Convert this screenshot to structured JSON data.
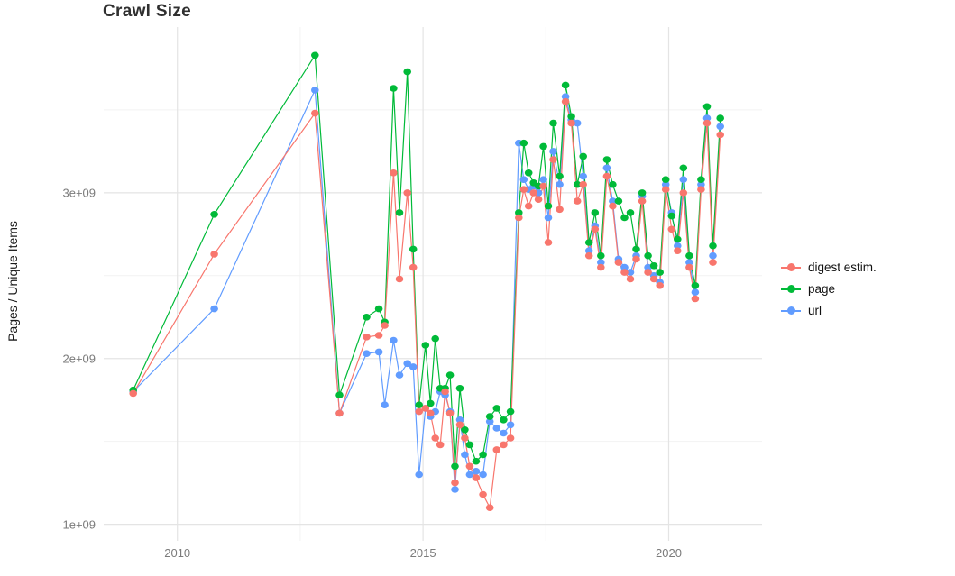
{
  "chart_data": {
    "type": "line",
    "title": "Crawl Size",
    "xlabel": "",
    "ylabel": "Pages / Unique Items",
    "y_unit": "pages (value x 1e9)",
    "x_domain": [
      2008.5,
      2021.9
    ],
    "y_domain": [
      0.9,
      4.0
    ],
    "x_ticks": [
      {
        "v": 2010,
        "label": "2010"
      },
      {
        "v": 2015,
        "label": "2015"
      },
      {
        "v": 2020,
        "label": "2020"
      }
    ],
    "y_ticks": [
      {
        "v": 1,
        "label": "1e+09"
      },
      {
        "v": 2,
        "label": "2e+09"
      },
      {
        "v": 3,
        "label": "3e+09"
      }
    ],
    "minor_x": [
      2012.5,
      2017.5
    ],
    "minor_y": [
      1.5,
      2.5,
      3.5
    ],
    "grid": {
      "major_color": "#e4e4e4",
      "minor_color": "#f2f2f2",
      "background": "#ffffff"
    },
    "legend_position": "right",
    "x": [
      2009.1,
      2010.75,
      2012.8,
      2013.3,
      2013.85,
      2014.1,
      2014.22,
      2014.4,
      2014.52,
      2014.68,
      2014.8,
      2014.92,
      2015.05,
      2015.15,
      2015.25,
      2015.35,
      2015.45,
      2015.55,
      2015.65,
      2015.75,
      2015.85,
      2015.95,
      2016.08,
      2016.22,
      2016.36,
      2016.5,
      2016.64,
      2016.78,
      2016.95,
      2017.05,
      2017.15,
      2017.25,
      2017.35,
      2017.45,
      2017.55,
      2017.65,
      2017.78,
      2017.9,
      2018.02,
      2018.14,
      2018.26,
      2018.38,
      2018.5,
      2018.62,
      2018.74,
      2018.86,
      2018.98,
      2019.1,
      2019.22,
      2019.34,
      2019.46,
      2019.58,
      2019.7,
      2019.82,
      2019.94,
      2020.06,
      2020.18,
      2020.3,
      2020.42,
      2020.54,
      2020.66,
      2020.78,
      2020.9,
      2021.05
    ],
    "series": [
      {
        "name": "digest estim.",
        "color": "#F8766D",
        "values": [
          1.79,
          2.63,
          3.48,
          1.67,
          2.13,
          2.14,
          2.2,
          3.12,
          2.48,
          3.0,
          2.55,
          1.68,
          1.7,
          1.67,
          1.52,
          1.48,
          1.8,
          1.67,
          1.25,
          1.6,
          1.52,
          1.35,
          1.28,
          1.18,
          1.1,
          1.45,
          1.48,
          1.52,
          2.85,
          3.02,
          2.92,
          3.0,
          2.96,
          3.04,
          2.7,
          3.2,
          2.9,
          3.55,
          3.42,
          2.95,
          3.05,
          2.62,
          2.78,
          2.55,
          3.1,
          2.92,
          2.58,
          2.52,
          2.48,
          2.6,
          2.95,
          2.52,
          2.48,
          2.44,
          3.02,
          2.78,
          2.65,
          3.0,
          2.55,
          2.36,
          3.02,
          3.42,
          2.58,
          3.35
        ]
      },
      {
        "name": "page",
        "color": "#00BA38",
        "values": [
          1.81,
          2.87,
          3.83,
          1.78,
          2.25,
          2.3,
          2.22,
          3.63,
          2.88,
          3.73,
          2.66,
          1.72,
          2.08,
          1.73,
          2.12,
          1.82,
          1.82,
          1.9,
          1.35,
          1.82,
          1.57,
          1.48,
          1.38,
          1.42,
          1.65,
          1.7,
          1.63,
          1.68,
          2.88,
          3.3,
          3.12,
          3.06,
          3.04,
          3.28,
          2.92,
          3.42,
          3.1,
          3.65,
          3.46,
          3.05,
          3.22,
          2.7,
          2.88,
          2.62,
          3.2,
          3.05,
          2.95,
          2.85,
          2.88,
          2.66,
          3.0,
          2.62,
          2.56,
          2.52,
          3.08,
          2.86,
          2.72,
          3.15,
          2.62,
          2.44,
          3.08,
          3.52,
          2.68,
          3.45
        ]
      },
      {
        "name": "url",
        "color": "#619CFF",
        "values": [
          1.8,
          2.3,
          3.62,
          1.67,
          2.03,
          2.04,
          1.72,
          2.11,
          1.9,
          1.97,
          1.95,
          1.3,
          1.7,
          1.65,
          1.68,
          1.8,
          1.78,
          1.68,
          1.21,
          1.63,
          1.42,
          1.3,
          1.32,
          1.3,
          1.62,
          1.58,
          1.55,
          1.6,
          3.3,
          3.08,
          3.02,
          3.04,
          3.0,
          3.08,
          2.85,
          3.25,
          3.05,
          3.58,
          3.44,
          3.42,
          3.1,
          2.65,
          2.8,
          2.58,
          3.15,
          2.95,
          2.6,
          2.55,
          2.52,
          2.62,
          2.98,
          2.55,
          2.5,
          2.46,
          3.05,
          2.88,
          2.68,
          3.08,
          2.58,
          2.4,
          3.05,
          3.45,
          2.62,
          3.4
        ]
      }
    ]
  }
}
